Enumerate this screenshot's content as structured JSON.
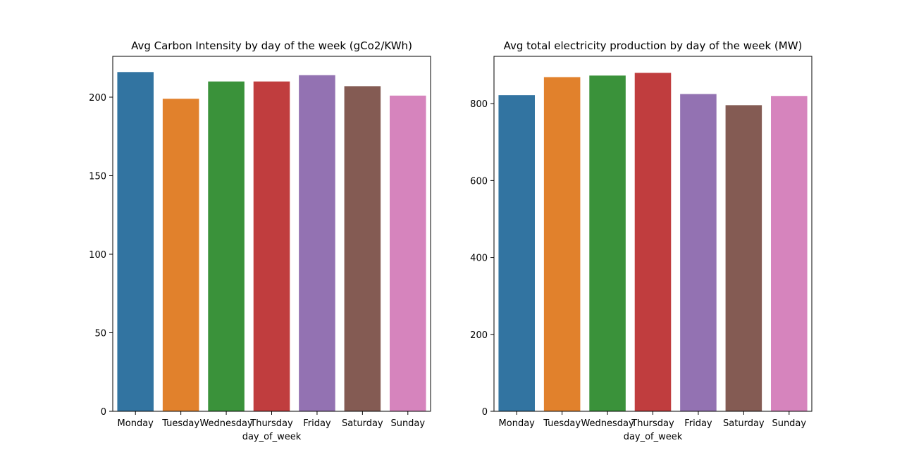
{
  "chart_data": [
    {
      "type": "bar",
      "title": "Avg Carbon Intensity by day of the week (gCo2/KWh)",
      "xlabel": "day_of_week",
      "ylabel": "",
      "categories": [
        "Monday",
        "Tuesday",
        "Wednesday",
        "Thursday",
        "Friday",
        "Saturday",
        "Sunday"
      ],
      "values": [
        216,
        199,
        210,
        210,
        214,
        207,
        201
      ],
      "colors": [
        "#3274a1",
        "#e1812c",
        "#3a923a",
        "#c03d3e",
        "#9372b2",
        "#845b53",
        "#d684bd"
      ],
      "ylim": [
        0,
        226
      ],
      "yticks": [
        0,
        50,
        100,
        150,
        200
      ],
      "grid": false,
      "legend": false
    },
    {
      "type": "bar",
      "title": "Avg total electricity production by day of the week (MW)",
      "xlabel": "day_of_week",
      "ylabel": "",
      "categories": [
        "Monday",
        "Tuesday",
        "Wednesday",
        "Thursday",
        "Friday",
        "Saturday",
        "Sunday"
      ],
      "values": [
        822,
        869,
        873,
        880,
        825,
        796,
        820
      ],
      "colors": [
        "#3274a1",
        "#e1812c",
        "#3a923a",
        "#c03d3e",
        "#9372b2",
        "#845b53",
        "#d684bd"
      ],
      "ylim": [
        0,
        923
      ],
      "yticks": [
        0,
        200,
        400,
        600,
        800
      ],
      "grid": false,
      "legend": false
    }
  ]
}
